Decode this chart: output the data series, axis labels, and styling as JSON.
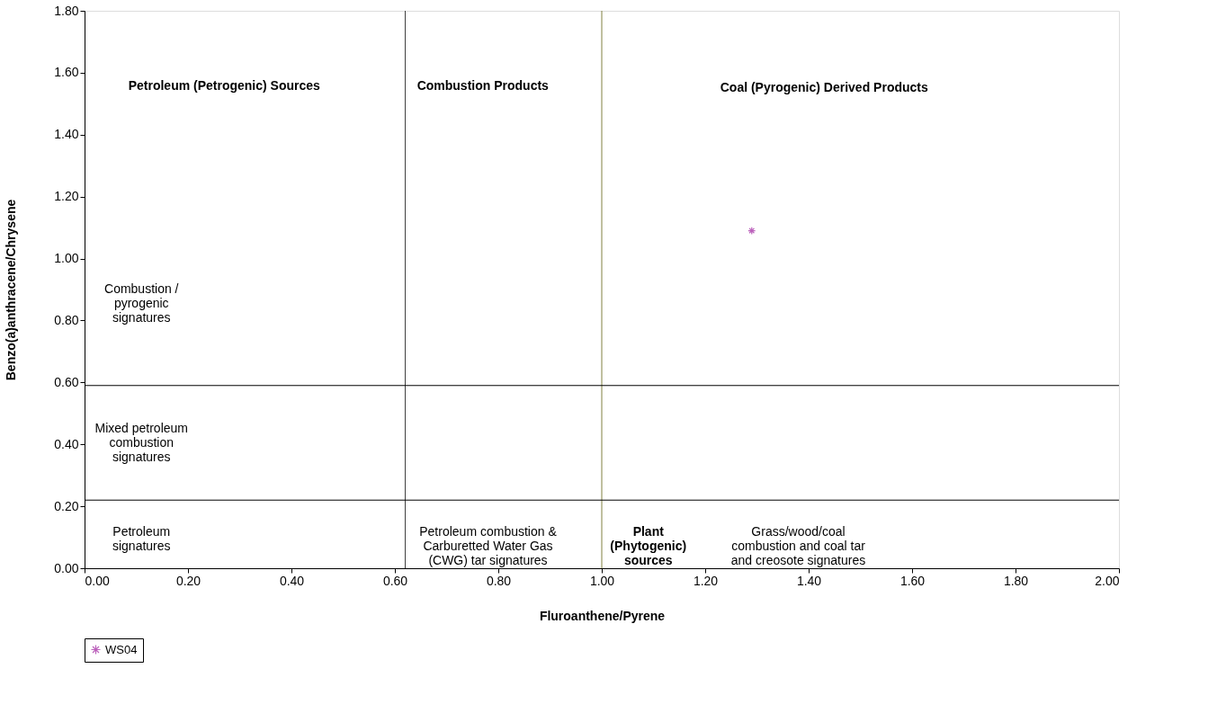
{
  "chart_data": {
    "type": "scatter",
    "xlabel": "Fluroanthene/Pyrene",
    "ylabel": "Benzo(a)anthracene/Chrysene",
    "series": [
      {
        "name": "WS04",
        "color": "#a020a0",
        "x": [
          1.29
        ],
        "values": [
          1.09
        ]
      }
    ],
    "marker": "cross",
    "legend": "bottom",
    "grid": false,
    "xlim": [
      0,
      2
    ],
    "ylim": [
      0,
      1.8
    ],
    "xticks": [
      {
        "value": 0,
        "label": "0.00"
      },
      {
        "value": 0.2,
        "label": "0.20"
      },
      {
        "value": 0.4,
        "label": "0.40"
      },
      {
        "value": 0.6,
        "label": "0.60"
      },
      {
        "value": 0.8,
        "label": "0.80"
      },
      {
        "value": 1.0,
        "label": "1.00"
      },
      {
        "value": 1.2,
        "label": "1.20"
      },
      {
        "value": 1.4,
        "label": "1.40"
      },
      {
        "value": 1.6,
        "label": "1.60"
      },
      {
        "value": 1.8,
        "label": "1.80"
      },
      {
        "value": 2.0,
        "label": "2.00"
      }
    ],
    "yticks": [
      {
        "value": 0,
        "label": "0.00"
      },
      {
        "value": 0.2,
        "label": "0.20"
      },
      {
        "value": 0.4,
        "label": "0.40"
      },
      {
        "value": 0.6,
        "label": "0.60"
      },
      {
        "value": 0.8,
        "label": "0.80"
      },
      {
        "value": 1.0,
        "label": "1.00"
      },
      {
        "value": 1.2,
        "label": "1.20"
      },
      {
        "value": 1.4,
        "label": "1.40"
      },
      {
        "value": 1.6,
        "label": "1.60"
      },
      {
        "value": 1.8,
        "label": "1.80"
      }
    ],
    "ref_lines": [
      {
        "axis": "x",
        "value": 0.62,
        "color": "#404040"
      },
      {
        "axis": "x",
        "value": 1.0,
        "color": "#808040"
      },
      {
        "axis": "y",
        "value": 0.59,
        "color": "#000000"
      },
      {
        "axis": "y",
        "value": 0.22,
        "color": "#000000"
      }
    ],
    "annotations": [
      "Petroleum (Petrogenic) Sources",
      "Combustion Products",
      "Coal (Pyrogenic) Derived Products",
      "Combustion /\npyrogenic\nsignatures",
      "Mixed petroleum\ncombustion\nsignatures",
      "Petroleum\nsignatures",
      "Petroleum combustion &\nCarburetted Water Gas\n(CWG) tar signatures",
      "Plant\n(Phytogenic)\nsources",
      "Grass/wood/coal\ncombustion and coal tar\nand creosote signatures"
    ]
  }
}
